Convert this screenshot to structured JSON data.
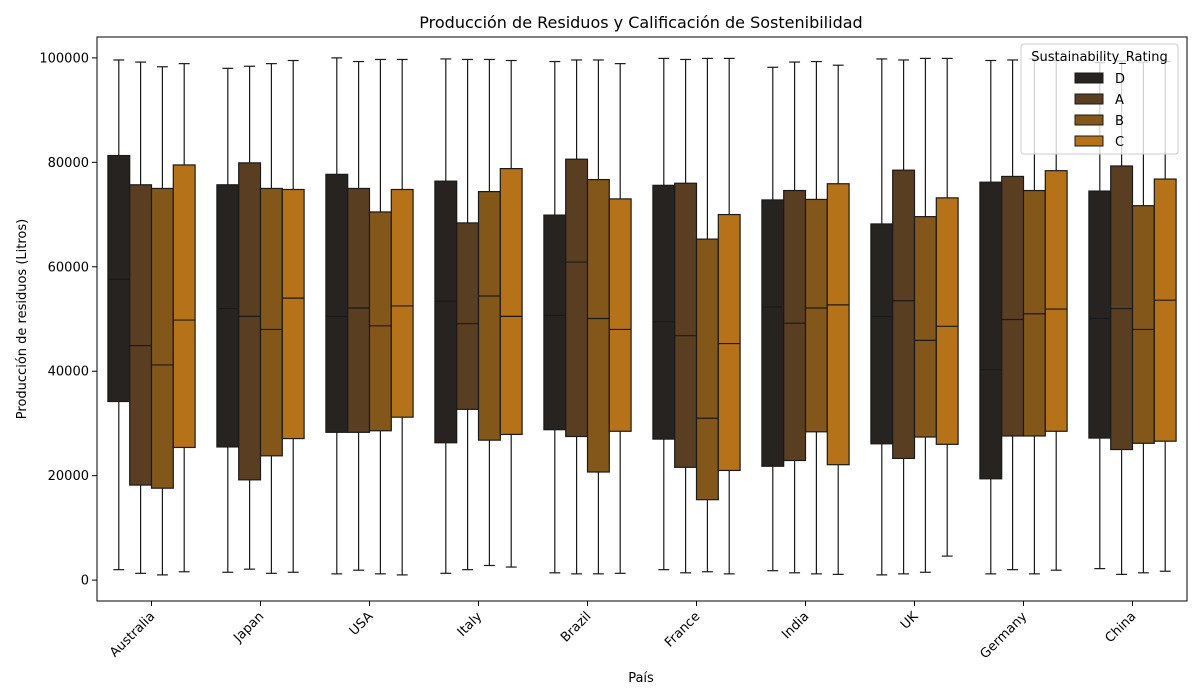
{
  "chart_data": {
    "type": "boxplot",
    "title": "Producción de Residuos y Calificación de Sostenibilidad",
    "xlabel": "País",
    "ylabel": "Producción de residuos (Litros)",
    "categories": [
      "Australia",
      "Japan",
      "USA",
      "Italy",
      "Brazil",
      "France",
      "India",
      "UK",
      "Germany",
      "China"
    ],
    "ylim": [
      -4000,
      104000
    ],
    "yticks": [
      0,
      20000,
      40000,
      60000,
      80000,
      100000
    ],
    "legend": {
      "title": "Sustainability_Rating",
      "position": "top-right"
    },
    "series": [
      {
        "name": "D",
        "color": "#272320",
        "boxes": [
          {
            "min": 2000,
            "q1": 34200,
            "median": 57600,
            "q3": 81300,
            "max": 99600
          },
          {
            "min": 1500,
            "q1": 25500,
            "median": 52000,
            "q3": 75700,
            "max": 98000
          },
          {
            "min": 1200,
            "q1": 28300,
            "median": 50500,
            "q3": 77700,
            "max": 100000
          },
          {
            "min": 1300,
            "q1": 26300,
            "median": 53400,
            "q3": 76400,
            "max": 99800
          },
          {
            "min": 1400,
            "q1": 28800,
            "median": 50700,
            "q3": 69900,
            "max": 99300
          },
          {
            "min": 2000,
            "q1": 27000,
            "median": 49500,
            "q3": 75600,
            "max": 99900
          },
          {
            "min": 1800,
            "q1": 21800,
            "median": 52300,
            "q3": 72800,
            "max": 98200
          },
          {
            "min": 1000,
            "q1": 26100,
            "median": 50500,
            "q3": 68200,
            "max": 99800
          },
          {
            "min": 1200,
            "q1": 19400,
            "median": 40300,
            "q3": 76200,
            "max": 99500
          },
          {
            "min": 2200,
            "q1": 27200,
            "median": 50100,
            "q3": 74500,
            "max": 99100
          }
        ]
      },
      {
        "name": "A",
        "color": "#5a3e21",
        "boxes": [
          {
            "min": 1300,
            "q1": 18200,
            "median": 44900,
            "q3": 75700,
            "max": 99200
          },
          {
            "min": 2100,
            "q1": 19200,
            "median": 50500,
            "q3": 79900,
            "max": 98400
          },
          {
            "min": 1900,
            "q1": 28300,
            "median": 52100,
            "q3": 75000,
            "max": 99300
          },
          {
            "min": 2000,
            "q1": 32700,
            "median": 49100,
            "q3": 68400,
            "max": 99700
          },
          {
            "min": 1200,
            "q1": 27500,
            "median": 60900,
            "q3": 80600,
            "max": 99600
          },
          {
            "min": 1400,
            "q1": 21600,
            "median": 46800,
            "q3": 76000,
            "max": 99700
          },
          {
            "min": 1400,
            "q1": 22900,
            "median": 49200,
            "q3": 74600,
            "max": 99200
          },
          {
            "min": 1200,
            "q1": 23300,
            "median": 53500,
            "q3": 78500,
            "max": 99600
          },
          {
            "min": 2000,
            "q1": 27600,
            "median": 49900,
            "q3": 77300,
            "max": 99600
          },
          {
            "min": 1100,
            "q1": 25000,
            "median": 52000,
            "q3": 79300,
            "max": 99400
          }
        ]
      },
      {
        "name": "B",
        "color": "#83561a",
        "boxes": [
          {
            "min": 1000,
            "q1": 17600,
            "median": 41200,
            "q3": 75000,
            "max": 98300
          },
          {
            "min": 1300,
            "q1": 23800,
            "median": 48000,
            "q3": 75000,
            "max": 98900
          },
          {
            "min": 1200,
            "q1": 28600,
            "median": 48700,
            "q3": 70500,
            "max": 99700
          },
          {
            "min": 2800,
            "q1": 26800,
            "median": 54400,
            "q3": 74400,
            "max": 99700
          },
          {
            "min": 1200,
            "q1": 20700,
            "median": 50100,
            "q3": 76700,
            "max": 99600
          },
          {
            "min": 1600,
            "q1": 15400,
            "median": 31000,
            "q3": 65300,
            "max": 99900
          },
          {
            "min": 1200,
            "q1": 28400,
            "median": 52100,
            "q3": 72900,
            "max": 99300
          },
          {
            "min": 1500,
            "q1": 27400,
            "median": 45900,
            "q3": 69600,
            "max": 99900
          },
          {
            "min": 1200,
            "q1": 27600,
            "median": 51000,
            "q3": 74600,
            "max": 99800
          },
          {
            "min": 1400,
            "q1": 26200,
            "median": 48000,
            "q3": 71700,
            "max": 99200
          }
        ]
      },
      {
        "name": "C",
        "color": "#b67218",
        "boxes": [
          {
            "min": 1600,
            "q1": 25400,
            "median": 49800,
            "q3": 79500,
            "max": 98900
          },
          {
            "min": 1500,
            "q1": 27100,
            "median": 54000,
            "q3": 74800,
            "max": 99500
          },
          {
            "min": 1000,
            "q1": 31200,
            "median": 52500,
            "q3": 74800,
            "max": 99700
          },
          {
            "min": 2500,
            "q1": 27900,
            "median": 50500,
            "q3": 78800,
            "max": 99500
          },
          {
            "min": 1300,
            "q1": 28500,
            "median": 48000,
            "q3": 73000,
            "max": 98900
          },
          {
            "min": 1200,
            "q1": 21000,
            "median": 45300,
            "q3": 70000,
            "max": 99900
          },
          {
            "min": 1100,
            "q1": 22100,
            "median": 52700,
            "q3": 75900,
            "max": 98600
          },
          {
            "min": 4600,
            "q1": 26000,
            "median": 48600,
            "q3": 73200,
            "max": 99900
          },
          {
            "min": 1900,
            "q1": 28500,
            "median": 51900,
            "q3": 78400,
            "max": 99500
          },
          {
            "min": 1700,
            "q1": 26600,
            "median": 53600,
            "q3": 76800,
            "max": 99300
          }
        ]
      }
    ]
  }
}
